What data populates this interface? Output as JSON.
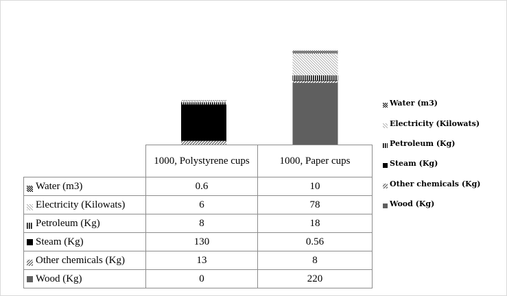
{
  "chart_data": {
    "type": "bar",
    "stacked": true,
    "title": "",
    "xlabel": "",
    "ylabel": "",
    "categories": [
      "1000, Polystyrene cups",
      "1000, Paper cups"
    ],
    "series": [
      {
        "name": "Wood (Kg)",
        "values": [
          0,
          220
        ],
        "color": "#5f5f5f",
        "pattern": "solid"
      },
      {
        "name": "Other chemicals (Kg)",
        "values": [
          13,
          8
        ],
        "color": "#595959",
        "pattern": "diagonal"
      },
      {
        "name": "Steam (Kg)",
        "values": [
          130,
          0.56
        ],
        "color": "#000000",
        "pattern": "solid"
      },
      {
        "name": "Petroleum (Kg)",
        "values": [
          8,
          18
        ],
        "color": "#000000",
        "pattern": "vertical"
      },
      {
        "name": "Electricity (Kilowats)",
        "values": [
          6,
          78
        ],
        "color": "#8a8a8a",
        "pattern": "light-diagonal"
      },
      {
        "name": "Water (m3)",
        "values": [
          0.6,
          10
        ],
        "color": "#000000",
        "pattern": "dots"
      }
    ],
    "data_table": {
      "rows_order": [
        "Water (m3)",
        "Electricity (Kilowats)",
        "Petroleum (Kg)",
        "Steam (Kg)",
        "Other chemicals (Kg)",
        "Wood (Kg)"
      ],
      "values_text": {
        "Water (m3)": [
          "0.6",
          "10"
        ],
        "Electricity (Kilowats)": [
          "6",
          "78"
        ],
        "Petroleum (Kg)": [
          "8",
          "18"
        ],
        "Steam (Kg)": [
          "130",
          "0.56"
        ],
        "Other chemicals (Kg)": [
          "13",
          "8"
        ],
        "Wood (Kg)": [
          "0",
          "220"
        ]
      }
    },
    "legend_position": "right",
    "grid": false
  }
}
